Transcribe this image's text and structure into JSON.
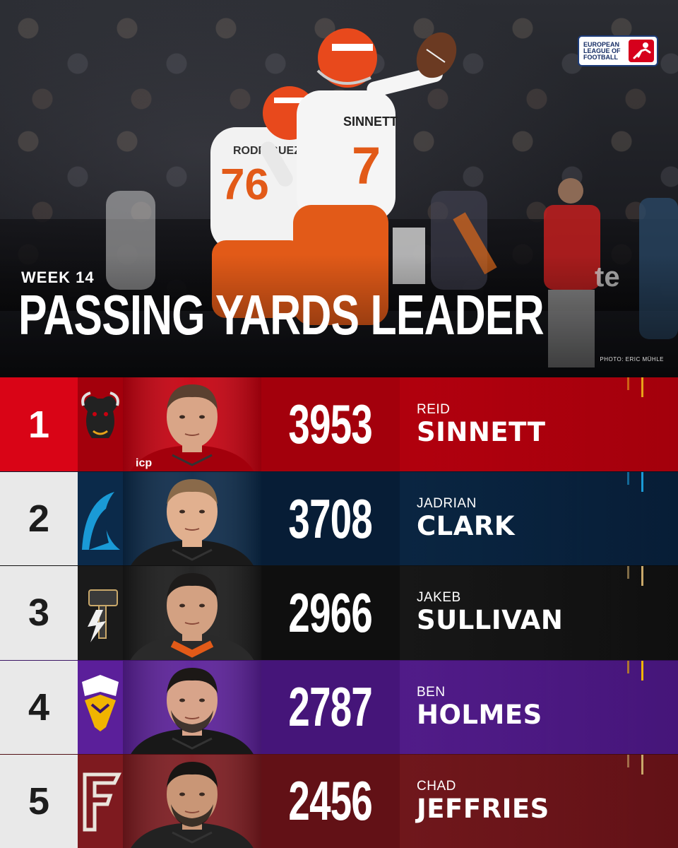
{
  "header": {
    "week_label": "WEEK 14",
    "headline": "PASSING YARDS LEADER",
    "photo_credit": "PHOTO: ERIC MÜHLE",
    "league_logo_text": "EUROPEAN LEAGUE of FOOTBALL",
    "hero_player": {
      "name": "SINNETT",
      "number": "7"
    },
    "hero_teammate": {
      "name": "RODRIGUEZ",
      "number": "76"
    }
  },
  "leaders": [
    {
      "rank": "1",
      "yards": "3953",
      "first_name": "REID",
      "last_name": "SINNETT",
      "team_icon": "bull-icon",
      "colors": {
        "rank_bg": "#d90416",
        "rank_text": "#ffffff",
        "main": "#c8000f",
        "dark": "#a3000c",
        "accent": "#e8a319"
      }
    },
    {
      "rank": "2",
      "yards": "3708",
      "first_name": "JADRIAN",
      "last_name": "CLARK",
      "team_icon": "wave-icon",
      "colors": {
        "rank_bg": "#e9e9e9",
        "rank_text": "#1c1c1c",
        "main": "#0b2a4a",
        "dark": "#071d36",
        "accent": "#1a9ad6"
      }
    },
    {
      "rank": "3",
      "yards": "2966",
      "first_name": "JAKEB",
      "last_name": "SULLIVAN",
      "team_icon": "hammer-bolt-icon",
      "colors": {
        "rank_bg": "#e9e9e9",
        "rank_text": "#1c1c1c",
        "main": "#1a1a1a",
        "dark": "#0f0f0f",
        "accent": "#c9a86a"
      }
    },
    {
      "rank": "4",
      "yards": "2787",
      "first_name": "BEN",
      "last_name": "HOLMES",
      "team_icon": "viking-helmet-icon",
      "colors": {
        "rank_bg": "#e9e9e9",
        "rank_text": "#1c1c1c",
        "main": "#5b1f9a",
        "dark": "#451579",
        "accent": "#f0b400"
      }
    },
    {
      "rank": "5",
      "yards": "2456",
      "first_name": "CHAD",
      "last_name": "JEFFRIES",
      "team_icon": "letter-f-icon",
      "colors": {
        "rank_bg": "#e9e9e9",
        "rank_text": "#1c1c1c",
        "main": "#7e1a1f",
        "dark": "#621116",
        "accent": "#c9a86a"
      }
    }
  ]
}
